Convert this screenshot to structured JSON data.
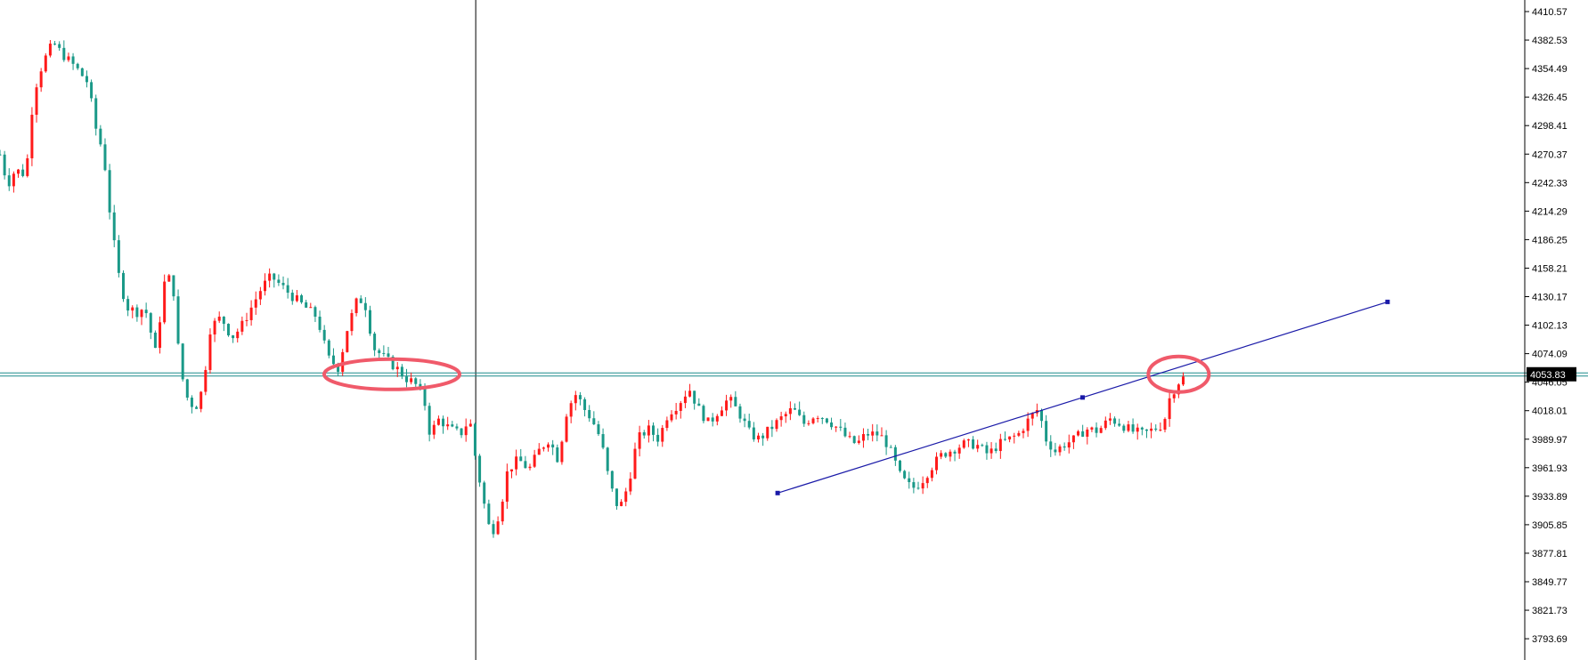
{
  "chart_data": {
    "type": "candlestick",
    "title": "",
    "xlabel": "",
    "ylabel": "",
    "ylim": [
      3765,
      4425
    ],
    "grid": false,
    "colors": {
      "up": "#ff1a1a",
      "down": "#1a9988",
      "trendline": "#1a1aa8",
      "annotation": "#f05a6a",
      "level_line": "#1a8a8a",
      "crosshair": "#000000"
    },
    "y_ticks": [
      "4410.57",
      "4382.53",
      "4354.49",
      "4326.45",
      "4298.41",
      "4270.37",
      "4242.33",
      "4214.29",
      "4186.25",
      "4158.21",
      "4130.17",
      "4102.13",
      "4074.09",
      "4046.05",
      "4018.01",
      "3989.97",
      "3961.93",
      "3933.89",
      "3905.85",
      "3877.81",
      "3849.77",
      "3821.73",
      "3793.69"
    ],
    "level_label": "4053.83",
    "level_value": 4053.83,
    "trendline": [
      {
        "x": 0.51,
        "price": 3937
      },
      {
        "x": 0.71,
        "price": 4031
      },
      {
        "x": 0.91,
        "price": 4125
      }
    ],
    "crosshair_x": 0.312,
    "series_anchors": [
      [
        0.0,
        4270
      ],
      [
        0.005,
        4240
      ],
      [
        0.01,
        4255
      ],
      [
        0.017,
        4250
      ],
      [
        0.022,
        4330
      ],
      [
        0.028,
        4360
      ],
      [
        0.035,
        4380
      ],
      [
        0.04,
        4370
      ],
      [
        0.05,
        4355
      ],
      [
        0.058,
        4340
      ],
      [
        0.062,
        4300
      ],
      [
        0.068,
        4270
      ],
      [
        0.073,
        4200
      ],
      [
        0.078,
        4150
      ],
      [
        0.083,
        4120
      ],
      [
        0.09,
        4115
      ],
      [
        0.095,
        4120
      ],
      [
        0.102,
        4075
      ],
      [
        0.108,
        4145
      ],
      [
        0.113,
        4150
      ],
      [
        0.118,
        4060
      ],
      [
        0.123,
        4030
      ],
      [
        0.128,
        4020
      ],
      [
        0.133,
        4040
      ],
      [
        0.138,
        4100
      ],
      [
        0.145,
        4110
      ],
      [
        0.152,
        4090
      ],
      [
        0.158,
        4100
      ],
      [
        0.165,
        4120
      ],
      [
        0.172,
        4140
      ],
      [
        0.178,
        4150
      ],
      [
        0.185,
        4140
      ],
      [
        0.192,
        4130
      ],
      [
        0.2,
        4120
      ],
      [
        0.208,
        4110
      ],
      [
        0.215,
        4070
      ],
      [
        0.222,
        4060
      ],
      [
        0.228,
        4100
      ],
      [
        0.235,
        4130
      ],
      [
        0.24,
        4120
      ],
      [
        0.245,
        4080
      ],
      [
        0.252,
        4070
      ],
      [
        0.26,
        4060
      ],
      [
        0.266,
        4050
      ],
      [
        0.272,
        4045
      ],
      [
        0.278,
        4030
      ],
      [
        0.282,
        3995
      ],
      [
        0.288,
        4010
      ],
      [
        0.295,
        4000
      ],
      [
        0.302,
        3995
      ],
      [
        0.308,
        4010
      ],
      [
        0.312,
        3970
      ],
      [
        0.317,
        3930
      ],
      [
        0.322,
        3895
      ],
      [
        0.328,
        3920
      ],
      [
        0.333,
        3960
      ],
      [
        0.34,
        3970
      ],
      [
        0.347,
        3960
      ],
      [
        0.354,
        3980
      ],
      [
        0.36,
        3990
      ],
      [
        0.366,
        3970
      ],
      [
        0.372,
        4020
      ],
      [
        0.378,
        4035
      ],
      [
        0.383,
        4020
      ],
      [
        0.388,
        4010
      ],
      [
        0.394,
        3990
      ],
      [
        0.4,
        3945
      ],
      [
        0.406,
        3920
      ],
      [
        0.412,
        3945
      ],
      [
        0.418,
        3990
      ],
      [
        0.425,
        4000
      ],
      [
        0.432,
        3990
      ],
      [
        0.438,
        4015
      ],
      [
        0.445,
        4025
      ],
      [
        0.452,
        4040
      ],
      [
        0.458,
        4020
      ],
      [
        0.465,
        4005
      ],
      [
        0.472,
        4020
      ],
      [
        0.478,
        4030
      ],
      [
        0.485,
        4015
      ],
      [
        0.492,
        3995
      ],
      [
        0.498,
        3990
      ],
      [
        0.505,
        4000
      ],
      [
        0.512,
        4010
      ],
      [
        0.52,
        4020
      ],
      [
        0.527,
        4005
      ],
      [
        0.535,
        4015
      ],
      [
        0.542,
        4010
      ],
      [
        0.55,
        4000
      ],
      [
        0.556,
        3990
      ],
      [
        0.562,
        3985
      ],
      [
        0.568,
        3995
      ],
      [
        0.575,
        3995
      ],
      [
        0.58,
        3990
      ],
      [
        0.585,
        3975
      ],
      [
        0.59,
        3955
      ],
      [
        0.595,
        3945
      ],
      [
        0.6,
        3942
      ],
      [
        0.605,
        3950
      ],
      [
        0.612,
        3965
      ],
      [
        0.618,
        3975
      ],
      [
        0.625,
        3980
      ],
      [
        0.632,
        3985
      ],
      [
        0.64,
        3985
      ],
      [
        0.648,
        3975
      ],
      [
        0.655,
        3985
      ],
      [
        0.662,
        3990
      ],
      [
        0.668,
        3995
      ],
      [
        0.675,
        4010
      ],
      [
        0.681,
        4020
      ],
      [
        0.686,
        3990
      ],
      [
        0.692,
        3978
      ],
      [
        0.698,
        3985
      ],
      [
        0.705,
        3990
      ],
      [
        0.712,
        4000
      ],
      [
        0.72,
        3998
      ],
      [
        0.728,
        4010
      ],
      [
        0.735,
        4005
      ],
      [
        0.742,
        3998
      ],
      [
        0.75,
        3995
      ],
      [
        0.757,
        4000
      ],
      [
        0.763,
        4005
      ],
      [
        0.767,
        4030
      ],
      [
        0.772,
        4045
      ],
      [
        0.776,
        4050
      ]
    ]
  }
}
